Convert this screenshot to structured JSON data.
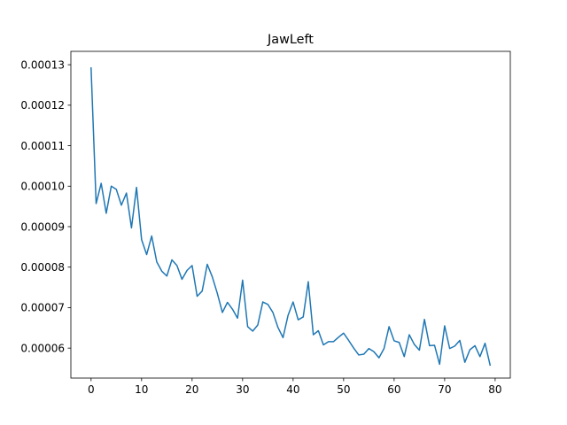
{
  "chart_data": {
    "type": "line",
    "title": "JawLeft",
    "xlabel": "",
    "ylabel": "",
    "xlim": [
      -4,
      83
    ],
    "ylim": [
      5.26e-05,
      0.0001333
    ],
    "x_ticks": [
      0,
      10,
      20,
      30,
      40,
      50,
      60,
      70,
      80
    ],
    "x_tick_labels": [
      "0",
      "10",
      "20",
      "30",
      "40",
      "50",
      "60",
      "70",
      "80"
    ],
    "y_ticks": [
      6e-05,
      7e-05,
      8e-05,
      9e-05,
      0.0001,
      0.00011,
      0.00012,
      0.00013
    ],
    "y_tick_labels": [
      "0.00006",
      "0.00007",
      "0.00008",
      "0.00009",
      "0.00010",
      "0.00011",
      "0.00012",
      "0.00013"
    ],
    "grid": false,
    "legend": "none",
    "series": [
      {
        "color": "#1f77b4",
        "x": [
          0,
          1,
          2,
          3,
          4,
          5,
          6,
          7,
          8,
          9,
          10,
          11,
          12,
          13,
          14,
          15,
          16,
          17,
          18,
          19,
          20,
          21,
          22,
          23,
          24,
          25,
          26,
          27,
          28,
          29,
          30,
          31,
          32,
          33,
          34,
          35,
          36,
          37,
          38,
          39,
          40,
          41,
          42,
          43,
          44,
          45,
          46,
          47,
          48,
          49,
          50,
          51,
          52,
          53,
          54,
          55,
          56,
          57,
          58,
          59,
          60,
          61,
          62,
          63,
          64,
          65,
          66,
          67,
          68,
          69,
          70,
          71,
          72,
          73,
          74,
          75,
          76,
          77,
          78,
          79
        ],
        "values": [
          0.0001292,
          9.57e-05,
          0.0001007,
          9.33e-05,
          0.0001,
          9.92e-05,
          9.53e-05,
          9.83e-05,
          8.97e-05,
          9.97e-05,
          8.68e-05,
          8.31e-05,
          8.77e-05,
          8.13e-05,
          7.9e-05,
          7.78e-05,
          8.18e-05,
          8.04e-05,
          7.7e-05,
          7.92e-05,
          8.04e-05,
          7.28e-05,
          7.41e-05,
          8.07e-05,
          7.76e-05,
          7.35e-05,
          6.88e-05,
          7.13e-05,
          6.96e-05,
          6.74e-05,
          7.68e-05,
          6.53e-05,
          6.42e-05,
          6.57e-05,
          7.14e-05,
          7.08e-05,
          6.88e-05,
          6.51e-05,
          6.26e-05,
          6.81e-05,
          7.14e-05,
          6.7e-05,
          6.77e-05,
          7.64e-05,
          6.33e-05,
          6.43e-05,
          6.08e-05,
          6.16e-05,
          6.16e-05,
          6.27e-05,
          6.37e-05,
          6.19e-05,
          6e-05,
          5.83e-05,
          5.85e-05,
          5.99e-05,
          5.91e-05,
          5.76e-05,
          5.99e-05,
          6.53e-05,
          6.18e-05,
          6.14e-05,
          5.79e-05,
          6.33e-05,
          6.09e-05,
          5.95e-05,
          6.71e-05,
          6.06e-05,
          6.07e-05,
          5.6e-05,
          6.55e-05,
          5.99e-05,
          6.05e-05,
          6.19e-05,
          5.65e-05,
          5.96e-05,
          6.06e-05,
          5.79e-05,
          6.12e-05,
          5.58e-05
        ]
      }
    ]
  }
}
